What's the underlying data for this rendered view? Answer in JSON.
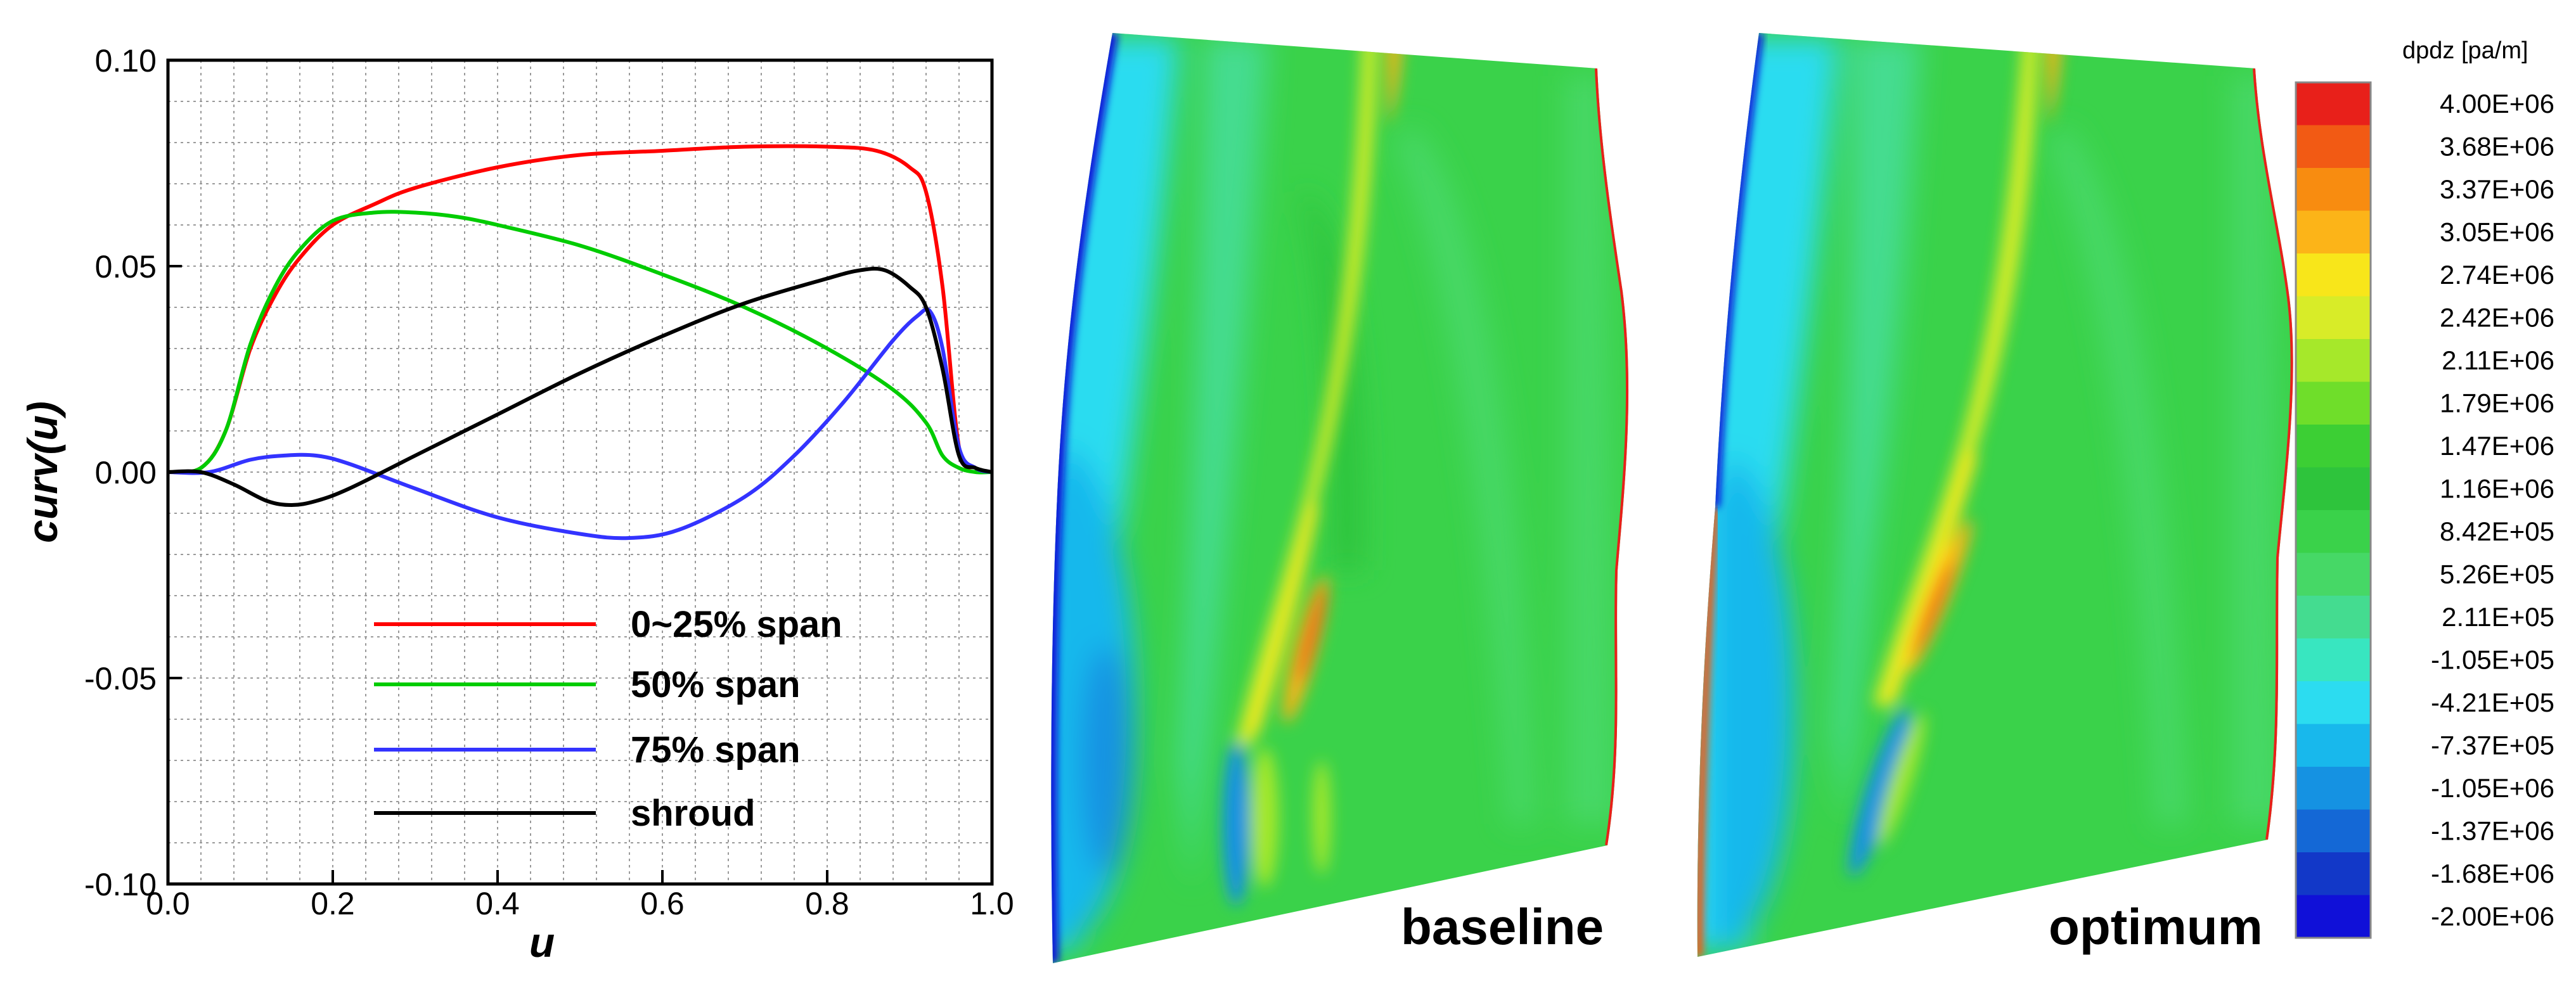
{
  "chart_data": [
    {
      "type": "line",
      "title": "",
      "xlabel": "u",
      "ylabel": "curv(u)",
      "xlim": [
        0.0,
        1.0
      ],
      "ylim": [
        -0.1,
        0.1
      ],
      "x_ticks": [
        "0.0",
        "0.2",
        "0.4",
        "0.6",
        "0.8",
        "1.0"
      ],
      "y_ticks": [
        "-0.10",
        "-0.05",
        "0.00",
        "0.05",
        "0.10"
      ],
      "grid": true,
      "legend_position": "bottom-center",
      "series": [
        {
          "name": "0~25% span",
          "color": "#ff0000",
          "x": [
            0.0,
            0.04,
            0.07,
            0.1,
            0.13,
            0.16,
            0.2,
            0.25,
            0.3,
            0.4,
            0.5,
            0.6,
            0.7,
            0.8,
            0.86,
            0.9,
            0.92,
            0.94,
            0.96,
            0.98,
            1.0
          ],
          "y": [
            0.0,
            0.001,
            0.01,
            0.03,
            0.043,
            0.052,
            0.06,
            0.065,
            0.069,
            0.074,
            0.077,
            0.078,
            0.079,
            0.079,
            0.078,
            0.074,
            0.068,
            0.045,
            0.006,
            0.001,
            0.0
          ]
        },
        {
          "name": "50% span",
          "color": "#00cc00",
          "x": [
            0.0,
            0.04,
            0.07,
            0.1,
            0.13,
            0.16,
            0.2,
            0.25,
            0.3,
            0.35,
            0.4,
            0.5,
            0.6,
            0.7,
            0.8,
            0.88,
            0.92,
            0.94,
            0.96,
            0.98,
            1.0
          ],
          "y": [
            0.0,
            0.001,
            0.01,
            0.031,
            0.045,
            0.054,
            0.061,
            0.063,
            0.063,
            0.062,
            0.06,
            0.055,
            0.048,
            0.04,
            0.03,
            0.02,
            0.012,
            0.004,
            0.001,
            0.0,
            0.0
          ]
        },
        {
          "name": "75% span",
          "color": "#3333ff",
          "x": [
            0.0,
            0.05,
            0.1,
            0.14,
            0.18,
            0.22,
            0.3,
            0.4,
            0.5,
            0.56,
            0.62,
            0.7,
            0.76,
            0.82,
            0.88,
            0.91,
            0.925,
            0.94,
            0.96,
            0.98,
            1.0
          ],
          "y": [
            0.0,
            0.0,
            0.003,
            0.004,
            0.004,
            0.002,
            -0.004,
            -0.011,
            -0.015,
            -0.016,
            -0.014,
            -0.006,
            0.004,
            0.017,
            0.032,
            0.038,
            0.039,
            0.03,
            0.006,
            0.001,
            0.0
          ]
        },
        {
          "name": "shroud",
          "color": "#000000",
          "x": [
            0.0,
            0.04,
            0.08,
            0.12,
            0.15,
            0.18,
            0.22,
            0.3,
            0.4,
            0.5,
            0.6,
            0.7,
            0.8,
            0.84,
            0.87,
            0.9,
            0.92,
            0.94,
            0.96,
            0.98,
            1.0
          ],
          "y": [
            0.0,
            0.0,
            -0.003,
            -0.007,
            -0.008,
            -0.007,
            -0.004,
            0.004,
            0.014,
            0.024,
            0.033,
            0.041,
            0.047,
            0.049,
            0.049,
            0.045,
            0.04,
            0.025,
            0.004,
            0.001,
            0.0
          ]
        }
      ]
    },
    {
      "type": "heatmap",
      "title": "dpdz [pa/m]",
      "panels": [
        "baseline",
        "optimum"
      ],
      "colorbar_levels": [
        "4.00E+06",
        "3.68E+06",
        "3.37E+06",
        "3.05E+06",
        "2.74E+06",
        "2.42E+06",
        "2.11E+06",
        "1.79E+06",
        "1.47E+06",
        "1.16E+06",
        "8.42E+05",
        "5.26E+05",
        "2.11E+05",
        "-1.05E+05",
        "-4.21E+05",
        "-7.37E+05",
        "-1.05E+06",
        "-1.37E+06",
        "-1.68E+06",
        "-2.00E+06"
      ],
      "colorbar_colors": [
        "#e8201a",
        "#f25a14",
        "#f88c10",
        "#fcb418",
        "#f8e61a",
        "#d8ec28",
        "#a6e82a",
        "#6fde2a",
        "#3ccf34",
        "#2ec43c",
        "#3ad24a",
        "#46d866",
        "#44dc90",
        "#38e6c0",
        "#2cdcf0",
        "#18b8ec",
        "#1592e2",
        "#1468d6",
        "#1238c8",
        "#1010d8"
      ]
    }
  ]
}
